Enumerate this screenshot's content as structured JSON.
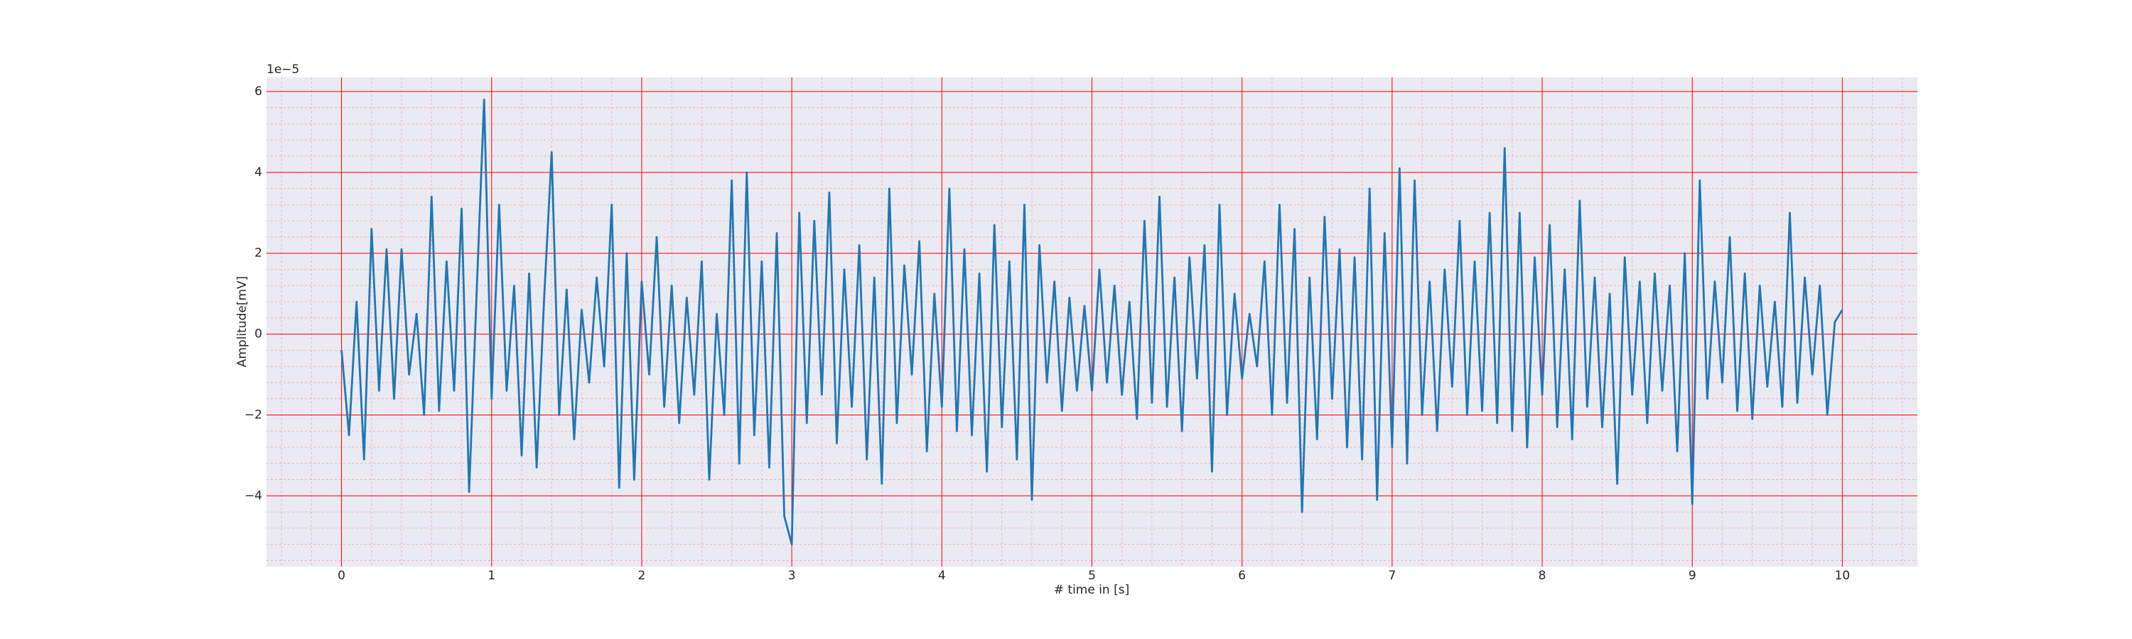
{
  "chart_data": {
    "type": "line",
    "xlabel": "# time in [s]",
    "ylabel": "Amplitude[mV]",
    "offset_text": "1e−5",
    "color": "#1f77b4",
    "background": "#eaeaf2",
    "grid": true,
    "grid_color": "#ff0000",
    "minor_grid": true,
    "minor_grid_color": "#f4a6b4",
    "xlim": [
      -0.5,
      10.5
    ],
    "ylim": [
      -5.75,
      6.35
    ],
    "xticks": [
      0,
      1,
      2,
      3,
      4,
      5,
      6,
      7,
      8,
      9,
      10
    ],
    "yticks": [
      {
        "value": -4,
        "label": "−4"
      },
      {
        "value": -2,
        "label": "−2"
      },
      0,
      2,
      4,
      6
    ],
    "x": [
      0,
      0.05,
      0.1,
      0.15,
      0.2,
      0.25,
      0.3,
      0.35,
      0.4,
      0.45,
      0.5,
      0.55,
      0.6,
      0.65,
      0.7,
      0.75,
      0.8,
      0.85,
      0.9,
      0.95,
      1,
      1.05,
      1.1,
      1.15,
      1.2,
      1.25,
      1.3,
      1.35,
      1.4,
      1.45,
      1.5,
      1.55,
      1.6,
      1.65,
      1.7,
      1.75,
      1.8,
      1.85,
      1.9,
      1.95,
      2,
      2.05,
      2.1,
      2.15,
      2.2,
      2.25,
      2.3,
      2.35,
      2.4,
      2.45,
      2.5,
      2.55,
      2.6,
      2.65,
      2.7,
      2.75,
      2.8,
      2.85,
      2.9,
      2.95,
      3,
      3.05,
      3.1,
      3.15,
      3.2,
      3.25,
      3.3,
      3.35,
      3.4,
      3.45,
      3.5,
      3.55,
      3.6,
      3.65,
      3.7,
      3.75,
      3.8,
      3.85,
      3.9,
      3.95,
      4,
      4.05,
      4.1,
      4.15,
      4.2,
      4.25,
      4.3,
      4.35,
      4.4,
      4.45,
      4.5,
      4.55,
      4.6,
      4.65,
      4.7,
      4.75,
      4.8,
      4.85,
      4.9,
      4.95,
      5,
      5.05,
      5.1,
      5.15,
      5.2,
      5.25,
      5.3,
      5.35,
      5.4,
      5.45,
      5.5,
      5.55,
      5.6,
      5.65,
      5.7,
      5.75,
      5.8,
      5.85,
      5.9,
      5.95,
      6,
      6.05,
      6.1,
      6.15,
      6.2,
      6.25,
      6.3,
      6.35,
      6.4,
      6.45,
      6.5,
      6.55,
      6.6,
      6.65,
      6.7,
      6.75,
      6.8,
      6.85,
      6.9,
      6.95,
      7,
      7.05,
      7.1,
      7.15,
      7.2,
      7.25,
      7.3,
      7.35,
      7.4,
      7.45,
      7.5,
      7.55,
      7.6,
      7.65,
      7.7,
      7.75,
      7.8,
      7.85,
      7.9,
      7.95,
      8,
      8.05,
      8.1,
      8.15,
      8.2,
      8.25,
      8.3,
      8.35,
      8.4,
      8.45,
      8.5,
      8.55,
      8.6,
      8.65,
      8.7,
      8.75,
      8.8,
      8.85,
      8.9,
      8.95,
      9,
      9.05,
      9.1,
      9.15,
      9.2,
      9.25,
      9.3,
      9.35,
      9.4,
      9.45,
      9.5,
      9.55,
      9.6,
      9.65,
      9.7,
      9.75,
      9.8,
      9.85,
      9.9,
      9.95,
      10
    ],
    "values": [
      -0.4,
      -2.5,
      0.8,
      -3.1,
      2.6,
      -1.4,
      2.1,
      -1.6,
      2.1,
      -1.0,
      0.5,
      -2.0,
      3.4,
      -1.9,
      1.8,
      -1.4,
      3.1,
      -3.9,
      1.0,
      5.8,
      -1.6,
      3.2,
      -1.4,
      1.2,
      -3.0,
      1.5,
      -3.3,
      0.9,
      4.5,
      -2.0,
      1.1,
      -2.6,
      0.6,
      -1.2,
      1.4,
      -0.8,
      3.2,
      -3.8,
      2.0,
      -3.6,
      1.3,
      -1.0,
      2.4,
      -1.8,
      1.2,
      -2.2,
      0.9,
      -1.5,
      1.8,
      -3.6,
      0.5,
      -2.0,
      3.8,
      -3.2,
      4.0,
      -2.5,
      1.8,
      -3.3,
      2.5,
      -4.5,
      -5.2,
      3.0,
      -2.2,
      2.8,
      -1.5,
      3.5,
      -2.7,
      1.6,
      -1.8,
      2.2,
      -3.1,
      1.4,
      -3.7,
      3.6,
      -2.2,
      1.7,
      -1.0,
      2.3,
      -2.9,
      1.0,
      -1.8,
      3.6,
      -2.4,
      2.1,
      -2.5,
      1.5,
      -3.4,
      2.7,
      -2.3,
      1.8,
      -3.1,
      3.2,
      -4.1,
      2.2,
      -1.2,
      1.3,
      -1.9,
      0.9,
      -1.4,
      0.7,
      -1.4,
      1.6,
      -1.2,
      1.2,
      -1.5,
      0.8,
      -2.1,
      2.8,
      -1.7,
      3.4,
      -1.8,
      1.4,
      -2.4,
      1.9,
      -1.1,
      2.2,
      -3.4,
      3.2,
      -2.0,
      1.0,
      -1.1,
      0.5,
      -0.8,
      1.8,
      -2.0,
      3.2,
      -1.7,
      2.6,
      -4.4,
      1.4,
      -2.6,
      2.9,
      -1.6,
      2.1,
      -2.8,
      1.9,
      -3.1,
      3.6,
      -4.1,
      2.5,
      -2.8,
      4.1,
      -3.2,
      3.8,
      -2.0,
      1.3,
      -2.4,
      1.6,
      -1.3,
      2.8,
      -2.0,
      1.8,
      -1.9,
      3.0,
      -2.2,
      4.6,
      -2.4,
      3.0,
      -2.8,
      1.9,
      -1.5,
      2.7,
      -2.3,
      1.6,
      -2.6,
      3.3,
      -1.8,
      1.4,
      -2.3,
      1.0,
      -3.7,
      1.9,
      -1.5,
      1.3,
      -2.2,
      1.5,
      -1.4,
      1.2,
      -2.9,
      2.0,
      -4.2,
      3.8,
      -1.6,
      1.3,
      -1.2,
      2.4,
      -1.9,
      1.5,
      -2.1,
      1.2,
      -1.3,
      0.8,
      -1.8,
      3.0,
      -1.7,
      1.4,
      -1.0,
      1.2,
      -2.0,
      0.3,
      0.6
    ]
  }
}
